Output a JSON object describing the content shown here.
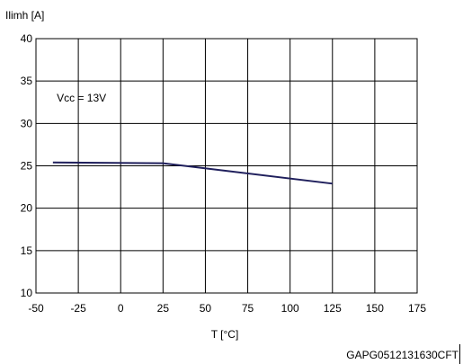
{
  "chart_data": {
    "type": "line",
    "ylabel": "Ilimh [A]",
    "xlabel": "T [°C]",
    "xlim": [
      -50,
      175
    ],
    "ylim": [
      10,
      40
    ],
    "xticks": [
      -50,
      -25,
      0,
      25,
      50,
      75,
      100,
      125,
      150,
      175
    ],
    "yticks": [
      10,
      15,
      20,
      25,
      30,
      35,
      40
    ],
    "grid": true,
    "series": [
      {
        "x": [
          -40,
          25,
          125
        ],
        "y": [
          25.4,
          25.3,
          22.9
        ],
        "color": "#1f1f5c"
      }
    ],
    "annotations": [
      {
        "text": "Vcc = 13V",
        "x": -25,
        "y": 33
      }
    ]
  },
  "figure_code": "GAPG0512131630CFT"
}
